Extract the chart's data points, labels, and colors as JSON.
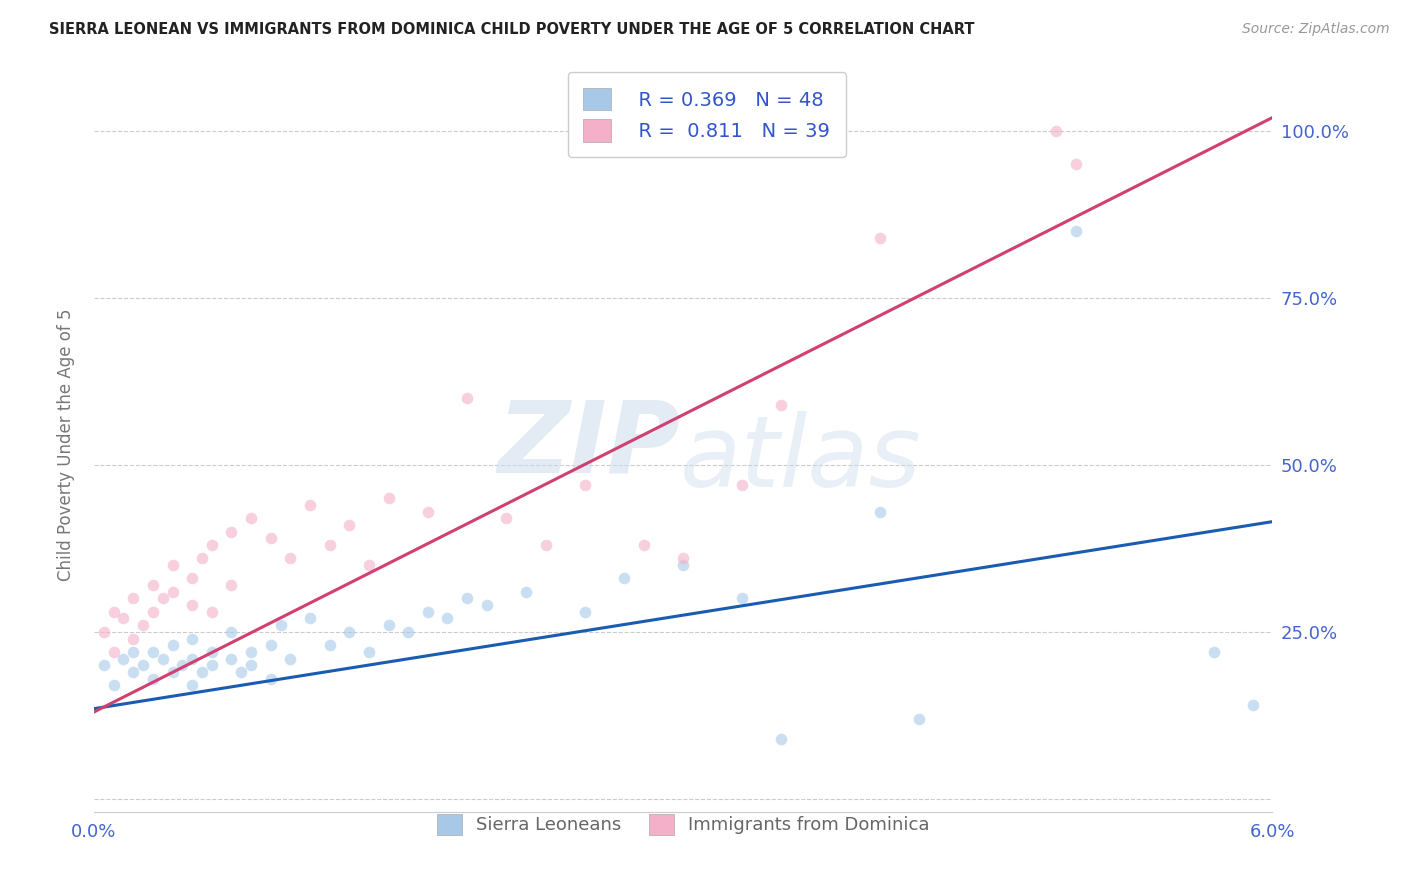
{
  "title": "SIERRA LEONEAN VS IMMIGRANTS FROM DOMINICA CHILD POVERTY UNDER THE AGE OF 5 CORRELATION CHART",
  "source": "Source: ZipAtlas.com",
  "ylabel": "Child Poverty Under the Age of 5",
  "xlim": [
    0.0,
    0.06
  ],
  "ylim": [
    -0.02,
    1.08
  ],
  "yticks": [
    0.0,
    0.25,
    0.5,
    0.75,
    1.0
  ],
  "ytick_labels": [
    "",
    "25.0%",
    "50.0%",
    "75.0%",
    "100.0%"
  ],
  "watermark_zip": "ZIP",
  "watermark_atlas": "atlas",
  "blue_color": "#a8c8e8",
  "pink_color": "#f4b0c8",
  "blue_line_color": "#1a5cb0",
  "pink_line_color": "#d04070",
  "title_color": "#222222",
  "source_color": "#999999",
  "axis_label_color": "#4466cc",
  "legend_text_color": "#3355cc",
  "background_color": "#ffffff",
  "scatter_alpha": 0.6,
  "scatter_size": 70,
  "blue_regression": [
    0.0,
    0.06,
    0.135,
    0.415
  ],
  "pink_regression": [
    0.0,
    0.06,
    0.13,
    1.02
  ],
  "blue_x": [
    0.0005,
    0.001,
    0.0015,
    0.002,
    0.002,
    0.0025,
    0.003,
    0.003,
    0.0035,
    0.004,
    0.004,
    0.0045,
    0.005,
    0.005,
    0.005,
    0.0055,
    0.006,
    0.006,
    0.007,
    0.007,
    0.0075,
    0.008,
    0.008,
    0.009,
    0.009,
    0.0095,
    0.01,
    0.011,
    0.012,
    0.013,
    0.014,
    0.015,
    0.016,
    0.017,
    0.018,
    0.019,
    0.02,
    0.022,
    0.025,
    0.027,
    0.03,
    0.033,
    0.035,
    0.04,
    0.042,
    0.05,
    0.057,
    0.059
  ],
  "blue_y": [
    0.2,
    0.17,
    0.21,
    0.19,
    0.22,
    0.2,
    0.18,
    0.22,
    0.21,
    0.19,
    0.23,
    0.2,
    0.17,
    0.21,
    0.24,
    0.19,
    0.22,
    0.2,
    0.21,
    0.25,
    0.19,
    0.22,
    0.2,
    0.18,
    0.23,
    0.26,
    0.21,
    0.27,
    0.23,
    0.25,
    0.22,
    0.26,
    0.25,
    0.28,
    0.27,
    0.3,
    0.29,
    0.31,
    0.28,
    0.33,
    0.35,
    0.3,
    0.09,
    0.43,
    0.12,
    0.85,
    0.22,
    0.14
  ],
  "pink_x": [
    0.0005,
    0.001,
    0.001,
    0.0015,
    0.002,
    0.002,
    0.0025,
    0.003,
    0.003,
    0.0035,
    0.004,
    0.004,
    0.005,
    0.005,
    0.0055,
    0.006,
    0.006,
    0.007,
    0.007,
    0.008,
    0.009,
    0.01,
    0.011,
    0.012,
    0.013,
    0.014,
    0.015,
    0.017,
    0.019,
    0.021,
    0.023,
    0.025,
    0.028,
    0.03,
    0.033,
    0.035,
    0.04,
    0.049,
    0.05
  ],
  "pink_y": [
    0.25,
    0.22,
    0.28,
    0.27,
    0.24,
    0.3,
    0.26,
    0.28,
    0.32,
    0.3,
    0.31,
    0.35,
    0.29,
    0.33,
    0.36,
    0.28,
    0.38,
    0.32,
    0.4,
    0.42,
    0.39,
    0.36,
    0.44,
    0.38,
    0.41,
    0.35,
    0.45,
    0.43,
    0.6,
    0.42,
    0.38,
    0.47,
    0.38,
    0.36,
    0.47,
    0.59,
    0.84,
    1.0,
    0.95
  ]
}
